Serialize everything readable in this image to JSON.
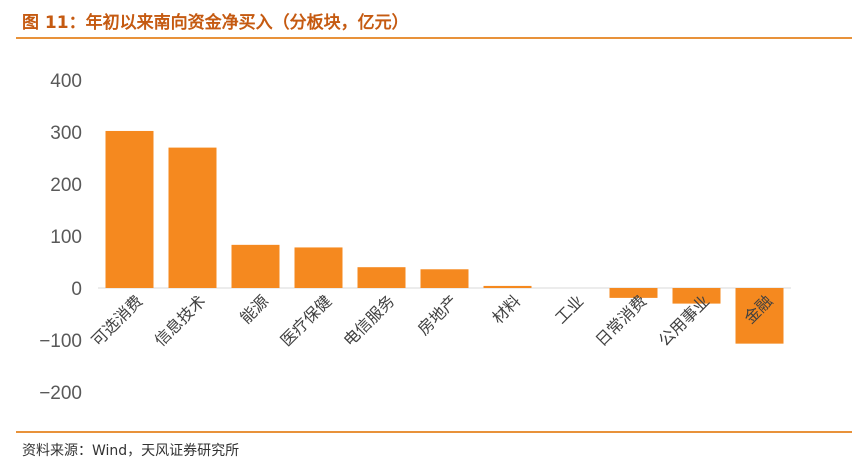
{
  "title": "图 11：年初以来南向资金净买入（分板块，亿元）",
  "source": "资料来源：Wind，天风证券研究所",
  "colors": {
    "bar": "#f5891f",
    "title": "#c55a11",
    "rule": "#e8923a",
    "axis_text": "#595959"
  },
  "chart_data": {
    "type": "bar",
    "title": "图 11：年初以来南向资金净买入（分板块，亿元）",
    "xlabel": "",
    "ylabel": "",
    "ylim": [
      -200,
      400
    ],
    "yticks": [
      -200,
      -100,
      0,
      100,
      200,
      300,
      400
    ],
    "ytick_labels": [
      "−200",
      "−100",
      "0",
      "100",
      "200",
      "300",
      "400"
    ],
    "grid": false,
    "legend": "none",
    "categories": [
      "可选消费",
      "信息技术",
      "能源",
      "医疗保健",
      "电信服务",
      "房地产",
      "材料",
      "工业",
      "日常消费",
      "公用事业",
      "金融"
    ],
    "values": [
      302,
      270,
      83,
      78,
      40,
      36,
      4,
      0,
      -19,
      -30,
      -107
    ]
  }
}
